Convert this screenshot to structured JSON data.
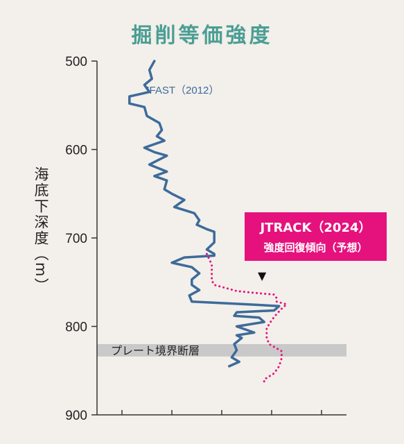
{
  "chart_data": {
    "type": "line",
    "title": "掘削等価強度",
    "ylabel": "海底下深度（m）",
    "ylim": [
      900,
      500
    ],
    "yticks": [
      500,
      600,
      700,
      800,
      900
    ],
    "xlim": [
      0,
      10
    ],
    "xticks": [
      1,
      3,
      5,
      7,
      9
    ],
    "colors": {
      "jfast": "#3d6b9a",
      "jtrack": "#e5127d",
      "band": "#c9c9c9",
      "title": "#4a9e93"
    },
    "series": [
      {
        "name": "JFAST（2012）",
        "style": "solid",
        "points": [
          [
            2.3,
            500
          ],
          [
            2.1,
            510
          ],
          [
            2.2,
            520
          ],
          [
            1.9,
            527
          ],
          [
            2.1,
            535
          ],
          [
            1.3,
            540
          ],
          [
            1.3,
            548
          ],
          [
            1.9,
            552
          ],
          [
            2.0,
            562
          ],
          [
            2.5,
            570
          ],
          [
            2.6,
            578
          ],
          [
            2.4,
            585
          ],
          [
            2.7,
            590
          ],
          [
            1.9,
            598
          ],
          [
            2.3,
            603
          ],
          [
            2.8,
            607
          ],
          [
            2.1,
            617
          ],
          [
            2.8,
            625
          ],
          [
            2.3,
            630
          ],
          [
            2.8,
            635
          ],
          [
            2.7,
            645
          ],
          [
            3.0,
            650
          ],
          [
            3.5,
            657
          ],
          [
            3.1,
            665
          ],
          [
            3.9,
            672
          ],
          [
            4.1,
            680
          ],
          [
            4.0,
            685
          ],
          [
            4.4,
            690
          ],
          [
            4.7,
            693
          ],
          [
            4.7,
            705
          ],
          [
            4.4,
            713
          ],
          [
            4.7,
            718
          ],
          [
            4.7,
            720
          ],
          [
            3.5,
            722
          ],
          [
            3.0,
            728
          ],
          [
            3.8,
            733
          ],
          [
            4.1,
            740
          ],
          [
            3.8,
            747
          ],
          [
            3.8,
            753
          ],
          [
            4.1,
            759
          ],
          [
            3.7,
            765
          ],
          [
            3.8,
            772
          ],
          [
            6.0,
            775
          ],
          [
            7.3,
            777
          ],
          [
            7.1,
            782
          ],
          [
            5.6,
            784
          ],
          [
            5.5,
            788
          ],
          [
            6.5,
            790
          ],
          [
            6.7,
            795
          ],
          [
            5.6,
            800
          ],
          [
            6.3,
            807
          ],
          [
            5.6,
            810
          ],
          [
            5.8,
            813
          ],
          [
            5.5,
            820
          ],
          [
            5.6,
            827
          ],
          [
            5.4,
            835
          ],
          [
            5.7,
            840
          ],
          [
            5.3,
            845
          ]
        ]
      },
      {
        "name": "JTRACK（2024）",
        "style": "dotted",
        "points": [
          [
            4.4,
            718
          ],
          [
            4.6,
            730
          ],
          [
            4.6,
            740
          ],
          [
            4.6,
            748
          ],
          [
            4.7,
            753
          ],
          [
            5.6,
            760
          ],
          [
            6.3,
            762
          ],
          [
            7.1,
            764
          ],
          [
            7.2,
            768
          ],
          [
            7.2,
            772
          ],
          [
            7.6,
            775
          ],
          [
            7.4,
            780
          ],
          [
            7.2,
            786
          ],
          [
            7.0,
            793
          ],
          [
            6.8,
            802
          ],
          [
            6.8,
            813
          ],
          [
            6.9,
            820
          ],
          [
            7.4,
            828
          ],
          [
            7.4,
            836
          ],
          [
            7.3,
            845
          ],
          [
            7.1,
            853
          ],
          [
            6.7,
            860
          ],
          [
            6.7,
            865
          ]
        ]
      }
    ],
    "series_label": "JFAST（2012）",
    "band": {
      "label": "プレート境界断層",
      "from": 820,
      "to": 834
    },
    "callout": {
      "line1": "JTRACK（2024）",
      "line2": "強度回復傾向（予想）",
      "arrow": "▼"
    }
  }
}
